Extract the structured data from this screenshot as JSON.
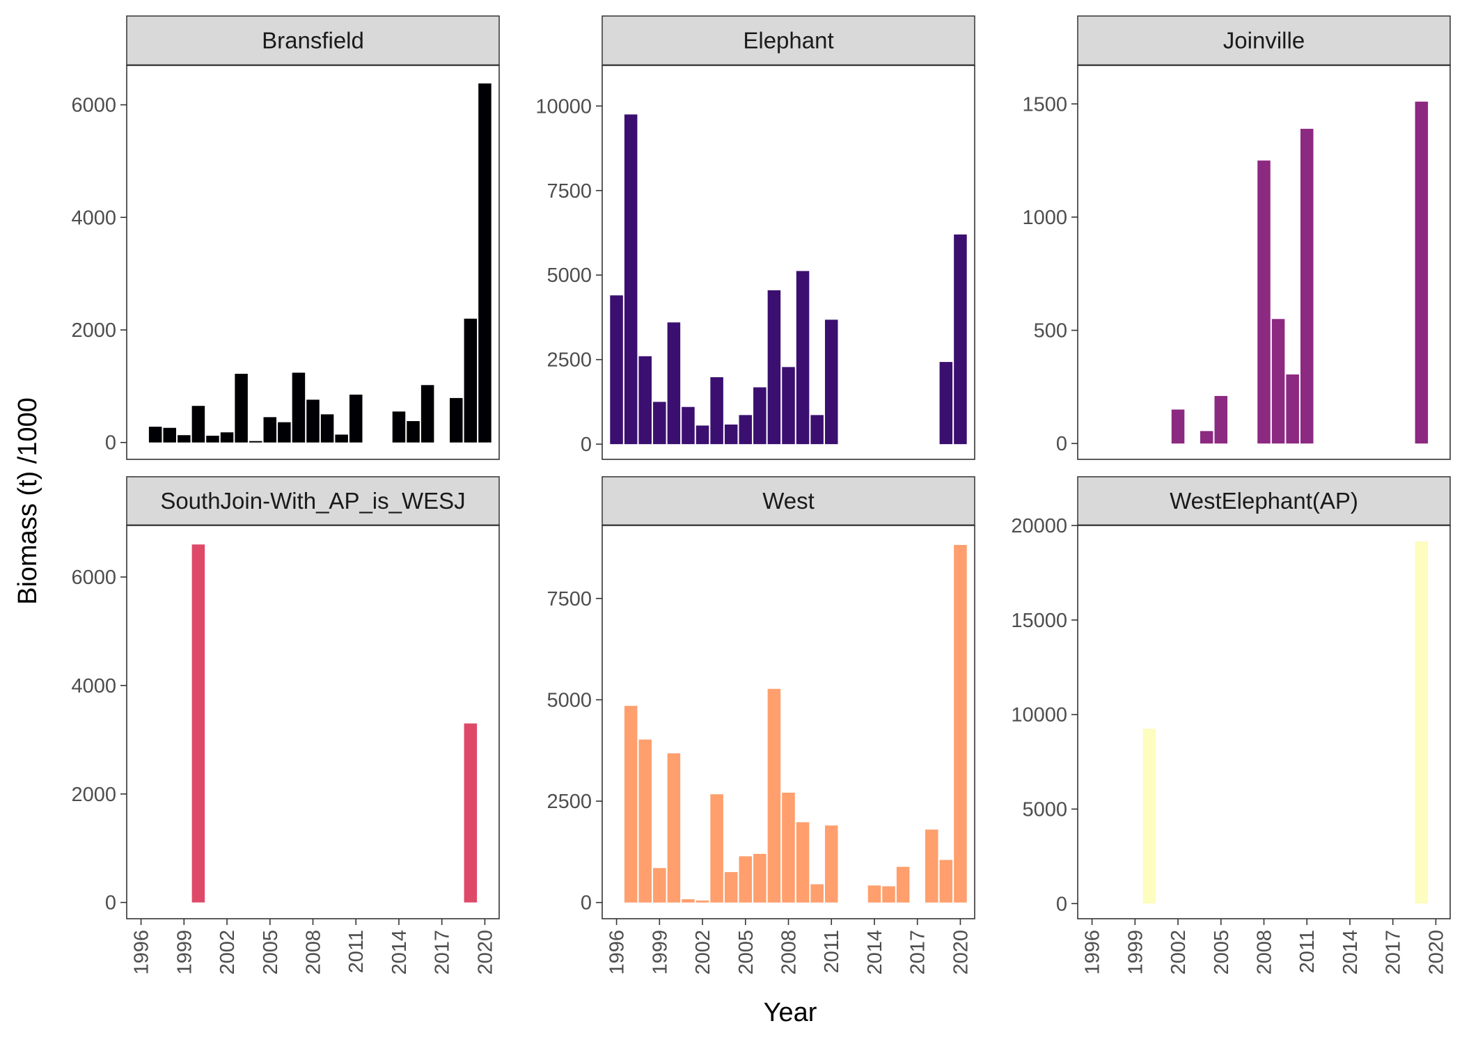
{
  "chart_data": {
    "type": "bar",
    "xlabel": "Year",
    "ylabel": "Biomass (t) /1000",
    "x_ticks": [
      1996,
      1999,
      2002,
      2005,
      2008,
      2011,
      2014,
      2017,
      2020
    ],
    "xlim": [
      1995,
      2021
    ],
    "grid": false,
    "panels": [
      {
        "name": "Bransfield",
        "color": "#000004",
        "ylim": [
          -300,
          6700
        ],
        "y_ticks": [
          0,
          2000,
          4000,
          6000
        ],
        "x": [
          1997,
          1998,
          1999,
          2000,
          2001,
          2002,
          2003,
          2004,
          2005,
          2006,
          2007,
          2008,
          2009,
          2010,
          2011,
          2014,
          2015,
          2016,
          2018,
          2019,
          2020
        ],
        "values": [
          280,
          260,
          130,
          650,
          120,
          180,
          1220,
          25,
          450,
          360,
          1240,
          760,
          500,
          140,
          850,
          550,
          380,
          1020,
          790,
          2200,
          6380
        ]
      },
      {
        "name": "Elephant",
        "color": "#3b0f70",
        "ylim": [
          -450,
          11200
        ],
        "y_ticks": [
          0,
          2500,
          5000,
          7500,
          10000
        ],
        "x": [
          1996,
          1997,
          1998,
          1999,
          2000,
          2001,
          2002,
          2003,
          2004,
          2005,
          2006,
          2007,
          2008,
          2009,
          2010,
          2011,
          2019,
          2020
        ],
        "values": [
          4400,
          9750,
          2600,
          1250,
          3600,
          1100,
          550,
          1980,
          580,
          860,
          1680,
          4550,
          2280,
          5120,
          860,
          3680,
          2430,
          6200
        ]
      },
      {
        "name": "Joinville",
        "color": "#8c2981",
        "ylim": [
          -70,
          1670
        ],
        "y_ticks": [
          0,
          500,
          1000,
          1500
        ],
        "x": [
          2002,
          2004,
          2005,
          2008,
          2009,
          2010,
          2011,
          2019
        ],
        "values": [
          150,
          55,
          210,
          1250,
          550,
          305,
          1390,
          1510
        ]
      },
      {
        "name": "SouthJoin-With_AP_is_WESJ",
        "color": "#de4968",
        "ylim": [
          -300,
          6950
        ],
        "y_ticks": [
          0,
          2000,
          4000,
          6000
        ],
        "x": [
          2000,
          2019
        ],
        "values": [
          6600,
          3300
        ]
      },
      {
        "name": "West",
        "color": "#fe9f6d",
        "ylim": [
          -400,
          9300
        ],
        "y_ticks": [
          0,
          2500,
          5000,
          7500
        ],
        "x": [
          1997,
          1998,
          1999,
          2000,
          2001,
          2002,
          2003,
          2004,
          2005,
          2006,
          2007,
          2008,
          2009,
          2010,
          2011,
          2014,
          2015,
          2016,
          2018,
          2019,
          2020
        ],
        "values": [
          4850,
          4020,
          850,
          3680,
          80,
          50,
          2670,
          750,
          1140,
          1200,
          5270,
          2710,
          1980,
          450,
          1900,
          420,
          400,
          880,
          1800,
          1050,
          8820
        ]
      },
      {
        "name": "WestElephant(AP)",
        "color": "#fcfdbf",
        "ylim": [
          -800,
          20000
        ],
        "y_ticks": [
          0,
          5000,
          10000,
          15000,
          20000
        ],
        "x": [
          2000,
          2019
        ],
        "values": [
          9250,
          19150
        ]
      }
    ]
  }
}
